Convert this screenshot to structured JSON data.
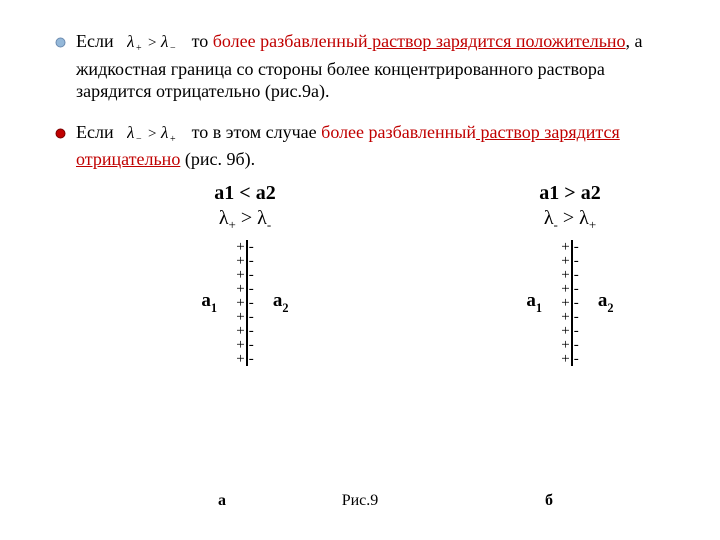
{
  "bullets": {
    "b1": {
      "prefix1": "Если",
      "cond_text": "λ₊ > λ₋",
      "mid1": " то ",
      "red1": "более разбавленный",
      "redu1": " раствор зарядится положительно",
      "tail1": ", а жидкостная граница со стороны более концентрированного раствора зарядится отрицательно (рис.9а)."
    },
    "b2": {
      "prefix1": "Если",
      "cond_text": "λ₋ > λ₊",
      "mid1": " то в этом случае ",
      "red1": "более разбавленный",
      "redu1": " раствор зарядится отрицательно",
      "tail1": " (рис. 9б)."
    }
  },
  "panels": {
    "a": {
      "heading": "a1  <  a2",
      "sub_before": "λ",
      "sub_sub1": "+",
      "sub_mid": " > λ",
      "sub_sub2": "-",
      "left_label": "a",
      "left_label_sub": "1",
      "right_label": "a",
      "right_label_sub": "2",
      "rows": 9
    },
    "b": {
      "heading": "a1  >  a2",
      "sub_before": "λ",
      "sub_sub1": "-",
      "sub_mid": " > λ",
      "sub_sub2": "+",
      "left_label": "a",
      "left_label_sub": "1",
      "right_label": "a",
      "right_label_sub": "2",
      "rows": 9
    }
  },
  "caption": {
    "a": "а",
    "fig": "Рис.9",
    "b": "б"
  },
  "style": {
    "bullet_fill": "#94b8d9",
    "bullet_fill2": "#c00000",
    "bullet_stroke": "#6c8bb0"
  }
}
